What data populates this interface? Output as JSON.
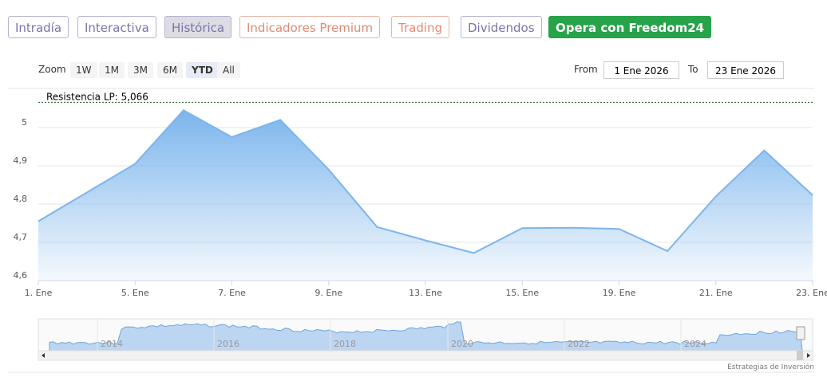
{
  "tabs": [
    "Intradía",
    "Interactiva",
    "Histórica",
    "Indicadores Premium",
    "Trading",
    "Dividendos",
    "Opera con Freedom24"
  ],
  "zoom": {
    "label": "Zoom",
    "buttons": [
      "1W",
      "1M",
      "3M",
      "6M",
      "YTD",
      "All"
    ]
  },
  "range": {
    "from_label": "From",
    "from": "1 Ene 2026",
    "to_label": "To",
    "to": "23 Ene 2026"
  },
  "chart_data": {
    "type": "area",
    "color": "#7cb5ec",
    "annotation": "Resistencia LP: 5,066",
    "annotation_value": 5.066,
    "categories": [
      "1. Ene",
      null,
      "5. Ene",
      null,
      "7. Ene",
      null,
      "9. Ene",
      null,
      "13. Ene",
      null,
      "15. Ene",
      null,
      "19. Ene",
      null,
      "21. Ene",
      null,
      "23. Ene"
    ],
    "values": [
      4.755,
      4.83,
      4.905,
      5.045,
      4.975,
      5.02,
      4.89,
      4.74,
      4.705,
      4.672,
      4.737,
      4.738,
      4.735,
      4.677,
      4.82,
      4.94,
      4.823
    ],
    "ylim": [
      4.6,
      5.1
    ],
    "yticks": [
      {
        "value": 4.6,
        "label": "4,6"
      },
      {
        "value": 4.7,
        "label": "4,7"
      },
      {
        "value": 4.8,
        "label": "4,8"
      },
      {
        "value": 4.9,
        "label": "4,9"
      },
      5
    ],
    "grid": true
  },
  "navigator": {
    "years": [
      "2014",
      "2016",
      "2018",
      "2020",
      "2022",
      "2024"
    ]
  },
  "credit": "Estrategias de Inversión"
}
